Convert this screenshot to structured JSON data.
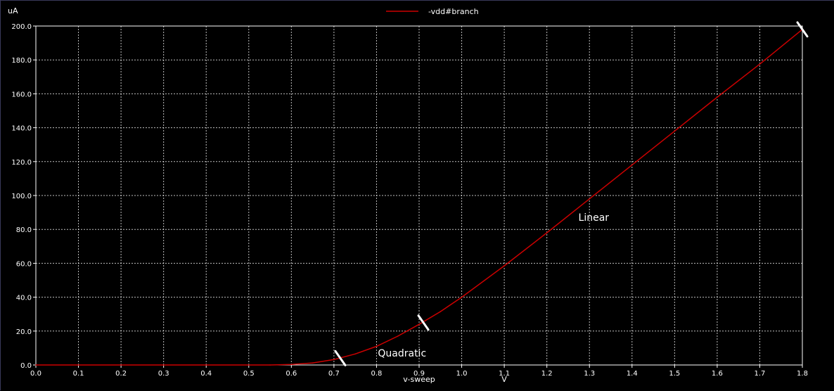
{
  "chart_data": {
    "type": "line",
    "ylabel": "uA",
    "xlabel": "v-sweep",
    "xunit": "V",
    "xlim": [
      0.0,
      1.8
    ],
    "ylim": [
      0.0,
      200.0
    ],
    "xticks": [
      "0.0",
      "0.1",
      "0.2",
      "0.3",
      "0.4",
      "0.5",
      "0.6",
      "0.7",
      "0.8",
      "0.9",
      "1.0",
      "1.1",
      "1.2",
      "1.3",
      "1.4",
      "1.5",
      "1.6",
      "1.7",
      "1.8"
    ],
    "yticks": [
      "0.0",
      "20.0",
      "40.0",
      "60.0",
      "80.0",
      "100.0",
      "120.0",
      "140.0",
      "160.0",
      "180.0",
      "200.0"
    ],
    "grid": true,
    "legend_position": "top-center",
    "series": [
      {
        "name": "-vdd#branch",
        "color": "#cc0000",
        "x": [
          0.0,
          0.55,
          0.6,
          0.65,
          0.7,
          0.75,
          0.8,
          0.85,
          0.9,
          0.95,
          1.0,
          1.1,
          1.2,
          1.3,
          1.4,
          1.5,
          1.6,
          1.7,
          1.8
        ],
        "y": [
          0.0,
          0.0,
          0.3,
          1.2,
          3.2,
          6.5,
          11.0,
          17.0,
          24.0,
          31.5,
          40.0,
          58.5,
          78.0,
          98.0,
          118.0,
          138.0,
          158.0,
          177.5,
          198.0
        ]
      }
    ],
    "annotations": [
      {
        "text": "Quadratic",
        "x": 0.86,
        "y": 5.0
      },
      {
        "text": "Linear",
        "x": 1.31,
        "y": 85.0
      }
    ],
    "markers": [
      {
        "x": 0.715,
        "y": 4.0
      },
      {
        "x": 0.91,
        "y": 25.0
      },
      {
        "x": 1.8,
        "y": 198.0
      }
    ],
    "annotation_color": "#ffffff",
    "grid_color": "#ffffff",
    "axis_color": "#ffffff"
  }
}
